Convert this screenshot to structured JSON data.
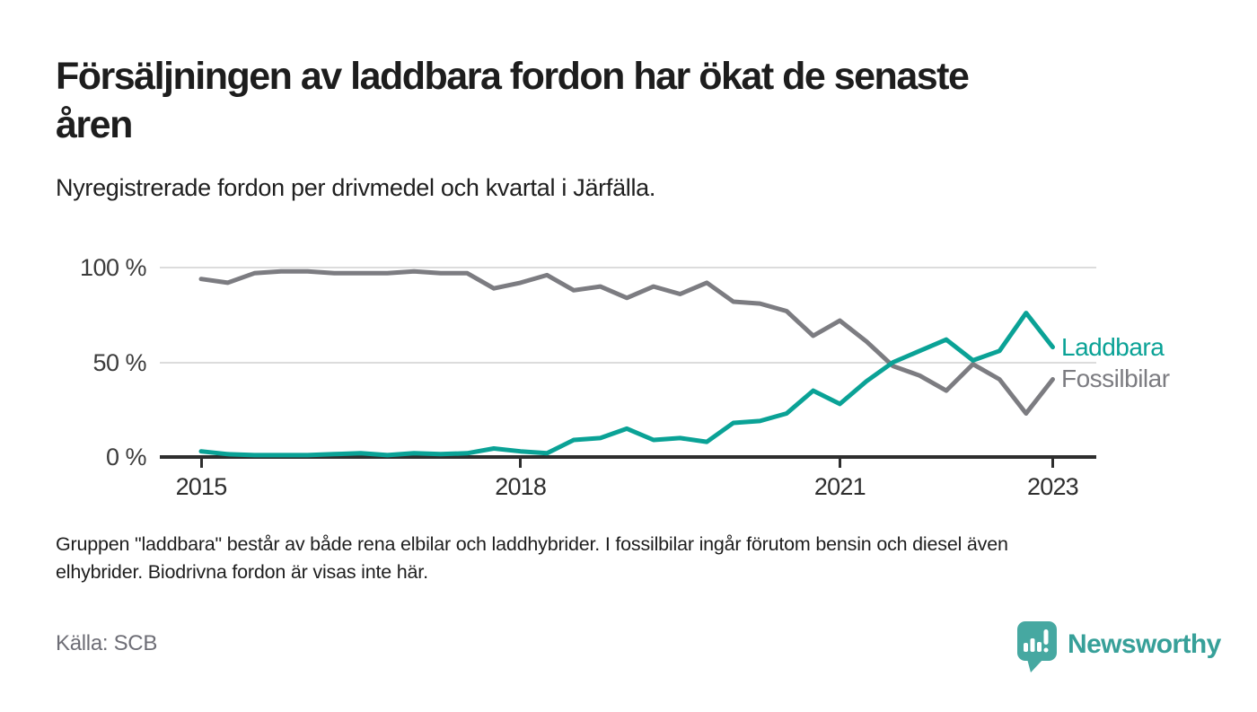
{
  "header": {
    "title_lines": [
      "Försäljningen av laddbara fordon har ökat de senaste",
      "åren"
    ],
    "subtitle": "Nyregistrerade fordon per drivmedel och kvartal i Järfälla."
  },
  "chart_data": {
    "type": "line",
    "x": [
      "2015 Q1",
      "2015 Q2",
      "2015 Q3",
      "2015 Q4",
      "2016 Q1",
      "2016 Q2",
      "2016 Q3",
      "2016 Q4",
      "2017 Q1",
      "2017 Q2",
      "2017 Q3",
      "2017 Q4",
      "2018 Q1",
      "2018 Q2",
      "2018 Q3",
      "2018 Q4",
      "2019 Q1",
      "2019 Q2",
      "2019 Q3",
      "2019 Q4",
      "2020 Q1",
      "2020 Q2",
      "2020 Q3",
      "2020 Q4",
      "2021 Q1",
      "2021 Q2",
      "2021 Q3",
      "2021 Q4",
      "2022 Q1",
      "2022 Q2",
      "2022 Q3",
      "2022 Q4",
      "2023 Q1"
    ],
    "series": [
      {
        "name": "Laddbara",
        "color": "#0aa296",
        "values": [
          3,
          1.5,
          1,
          1,
          1,
          1.5,
          2,
          1,
          2,
          1.5,
          2,
          4.5,
          3,
          2,
          9,
          10,
          15,
          9,
          10,
          8,
          18,
          19,
          23,
          35,
          28,
          40,
          50,
          56,
          62,
          51,
          56,
          76,
          58
        ]
      },
      {
        "name": "Fossilbilar",
        "color": "#7c7c81",
        "values": [
          94,
          92,
          97,
          98,
          98,
          97,
          97,
          97,
          98,
          97,
          97,
          89,
          92,
          96,
          88,
          90,
          84,
          90,
          86,
          92,
          82,
          81,
          77,
          64,
          72,
          61,
          48,
          43,
          35,
          49,
          41,
          23,
          41
        ]
      }
    ],
    "y_ticks": [
      {
        "label": "0 %",
        "value": 0
      },
      {
        "label": "50 %",
        "value": 50
      },
      {
        "label": "100 %",
        "value": 100
      }
    ],
    "x_ticks": [
      {
        "label": "2015",
        "index": 0
      },
      {
        "label": "2018",
        "index": 12
      },
      {
        "label": "2021",
        "index": 24
      },
      {
        "label": "2023",
        "index": 32
      }
    ],
    "ylim": [
      0,
      100
    ],
    "grid": "horizontal",
    "legend_position": "end-of-line-labels",
    "title": "Försäljningen av laddbara fordon har ökat de senaste åren",
    "subtitle": "Nyregistrerade fordon per drivmedel och kvartal i Järfälla."
  },
  "footer": {
    "note_lines": [
      "Gruppen \"laddbara\" består av både rena elbilar och laddhybrider. I fossilbilar ingår förutom bensin och diesel även",
      "elhybrider. Biodrivna fordon är visas inte här."
    ],
    "source": "Källa: SCB",
    "brand": "Newsworthy"
  },
  "colors": {
    "accent_teal": "#0aa296",
    "series_gray": "#7c7c81",
    "brand_teal": "#46a8a1",
    "brand_text_teal": "#37a099",
    "gridline": "#dcdcdc",
    "axis": "#2e2e2e",
    "text_dark": "#1d1d1d",
    "text_muted": "#6e6e76"
  }
}
